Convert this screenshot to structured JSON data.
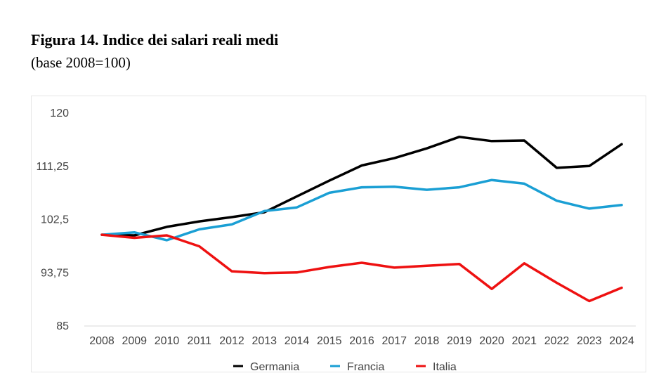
{
  "header": {
    "title": "Figura 14. Indice dei salari reali medi",
    "subtitle": "(base 2008=100)"
  },
  "chart_data": {
    "type": "line",
    "title": "Figura 14. Indice dei salari reali medi",
    "subtitle": "(base 2008=100)",
    "xlabel": "",
    "ylabel": "",
    "x": [
      "2008",
      "2009",
      "2010",
      "2011",
      "2012",
      "2013",
      "2014",
      "2015",
      "2016",
      "2017",
      "2018",
      "2019",
      "2020",
      "2021",
      "2022",
      "2023",
      "2024"
    ],
    "ylim": [
      85,
      120
    ],
    "yticks": [
      85,
      93.75,
      102.5,
      111.25,
      120
    ],
    "ytick_labels": [
      "85",
      "93,75",
      "102,5",
      "111,25",
      "120"
    ],
    "grid": false,
    "legend_position": "bottom",
    "series": [
      {
        "name": "Germania",
        "color": "#000000",
        "values": [
          100,
          99.9,
          101.3,
          102.2,
          102.9,
          103.7,
          106.3,
          108.9,
          111.4,
          112.6,
          114.2,
          116.1,
          115.4,
          115.5,
          111.0,
          111.3,
          114.9
        ]
      },
      {
        "name": "Francia",
        "color": "#1a9fd4",
        "values": [
          100,
          100.4,
          99.1,
          100.9,
          101.7,
          103.9,
          104.5,
          106.9,
          107.8,
          107.9,
          107.4,
          107.8,
          109.0,
          108.4,
          105.6,
          104.3,
          104.9
        ]
      },
      {
        "name": "Italia",
        "color": "#ee1111",
        "values": [
          100,
          99.5,
          99.9,
          98.1,
          94.0,
          93.7,
          93.8,
          94.7,
          95.4,
          94.6,
          94.9,
          95.2,
          91.1,
          95.3,
          92.1,
          89.1,
          91.3
        ]
      }
    ]
  }
}
